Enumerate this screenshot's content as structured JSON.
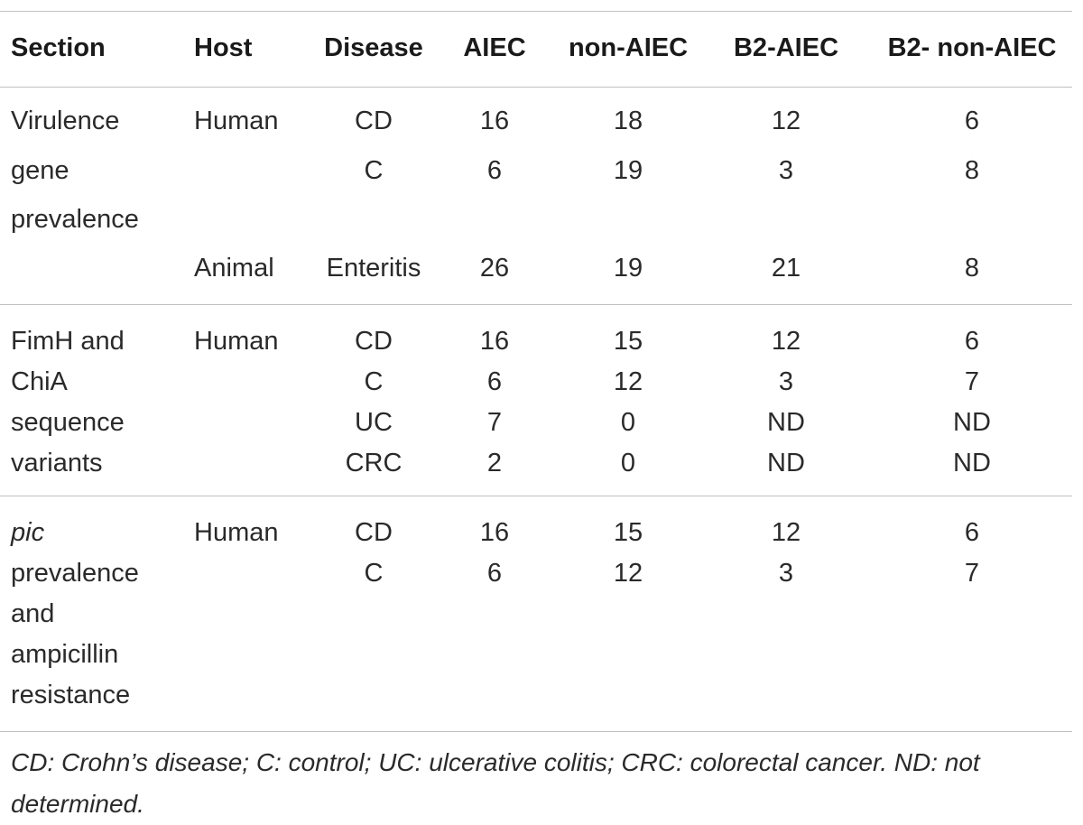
{
  "table": {
    "headers": [
      "Section",
      "Host",
      "Disease",
      "AIEC",
      "non-AIEC",
      "B2-AIEC",
      "B2- non-AIEC"
    ],
    "groups": [
      {
        "section_lines": [
          "Virulence",
          "gene",
          "prevalence"
        ],
        "rows": [
          {
            "host": "Human",
            "disease": "CD",
            "aiec": "16",
            "non_aiec": "18",
            "b2_aiec": "12",
            "b2_non_aiec": "6"
          },
          {
            "host": "",
            "disease": "C",
            "aiec": "6",
            "non_aiec": "19",
            "b2_aiec": "3",
            "b2_non_aiec": "8"
          },
          {
            "host": "Animal",
            "disease": "Enteritis",
            "aiec": "26",
            "non_aiec": "19",
            "b2_aiec": "21",
            "b2_non_aiec": "8"
          }
        ]
      },
      {
        "section_lines": [
          "FimH and",
          "ChiA",
          "sequence",
          "variants"
        ],
        "rows": [
          {
            "host": "Human",
            "disease": "CD",
            "aiec": "16",
            "non_aiec": "15",
            "b2_aiec": "12",
            "b2_non_aiec": "6"
          },
          {
            "host": "",
            "disease": "C",
            "aiec": "6",
            "non_aiec": "12",
            "b2_aiec": "3",
            "b2_non_aiec": "7"
          },
          {
            "host": "",
            "disease": "UC",
            "aiec": "7",
            "non_aiec": "0",
            "b2_aiec": "ND",
            "b2_non_aiec": "ND"
          },
          {
            "host": "",
            "disease": "CRC",
            "aiec": "2",
            "non_aiec": "0",
            "b2_aiec": "ND",
            "b2_non_aiec": "ND"
          }
        ]
      },
      {
        "section_lines": [
          "pic",
          "prevalence",
          "and",
          "ampicillin",
          "resistance"
        ],
        "rows": [
          {
            "host": "Human",
            "disease": "CD",
            "aiec": "16",
            "non_aiec": "15",
            "b2_aiec": "12",
            "b2_non_aiec": "6"
          },
          {
            "host": "",
            "disease": "C",
            "aiec": "6",
            "non_aiec": "12",
            "b2_aiec": "3",
            "b2_non_aiec": "7"
          }
        ]
      }
    ],
    "footnote": "CD: Crohn’s disease; C: control; UC: ulcerative colitis; CRC: colorectal cancer. ND: not determined."
  }
}
